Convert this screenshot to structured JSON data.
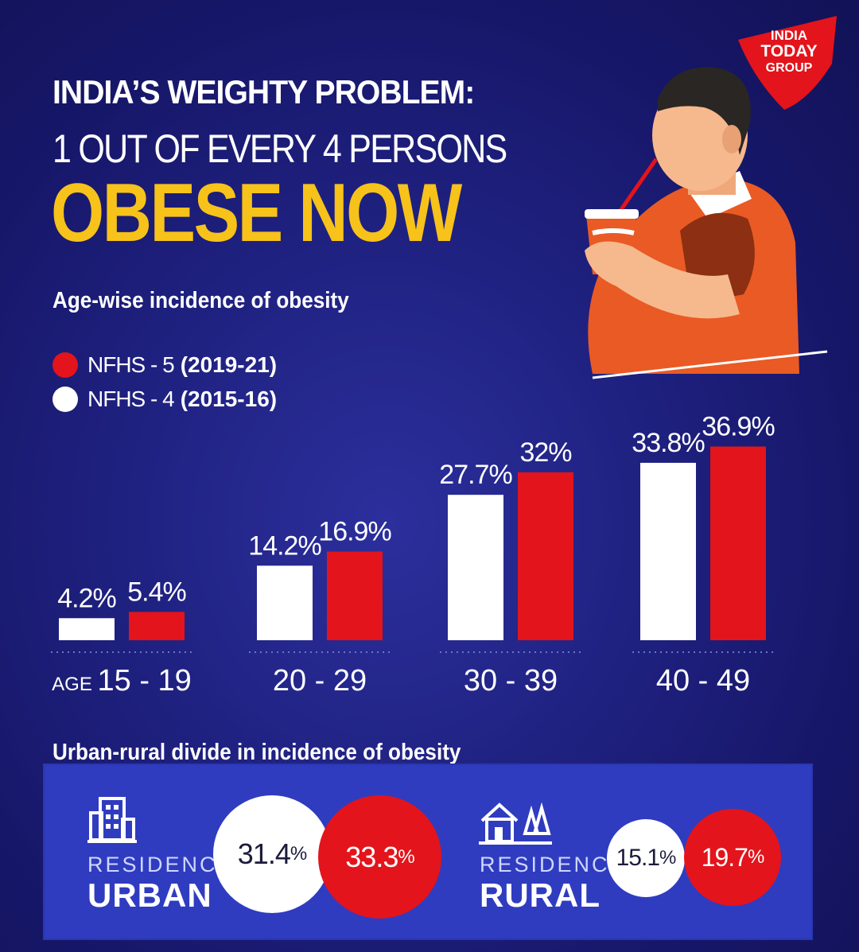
{
  "brand": {
    "logo_lines": [
      "INDIA",
      "TODAY",
      "GROUP"
    ],
    "color": "#e3141b"
  },
  "header": {
    "line1": "INDIA’S WEIGHTY PROBLEM:",
    "line2": "1 OUT OF EVERY 4 PERSONS",
    "line3": "OBESE NOW"
  },
  "colors": {
    "background": "#1f2180",
    "accent_yellow": "#f7c21a",
    "nfhs5": "#e3141b",
    "nfhs4": "#ffffff",
    "panel": "#2f3cc0"
  },
  "age_section": {
    "title": "Age-wise incidence of obesity",
    "legend": [
      {
        "name": "NFHS - 5",
        "years": "(2019-21)",
        "color": "#e3141b"
      },
      {
        "name": "NFHS - 4",
        "years": "(2015-16)",
        "color": "#ffffff"
      }
    ]
  },
  "chart_data": {
    "type": "bar",
    "title": "Age-wise incidence of obesity",
    "categories": [
      "15 - 19",
      "20 - 29",
      "30 - 39",
      "40 - 49"
    ],
    "category_prefix": "AGE",
    "series": [
      {
        "name": "NFHS - 4 (2015-16)",
        "color": "#ffffff",
        "values": [
          4.2,
          14.2,
          27.7,
          33.8
        ],
        "labels": [
          "4.2%",
          "14.2%",
          "27.7%",
          "33.8%"
        ]
      },
      {
        "name": "NFHS - 5 (2019-21)",
        "color": "#e3141b",
        "values": [
          5.4,
          16.9,
          32,
          36.9
        ],
        "labels": [
          "5.4%",
          "16.9%",
          "32%",
          "36.9%"
        ]
      }
    ],
    "ylim": [
      0,
      40
    ],
    "legend_position": "top-left"
  },
  "urban_section": {
    "title": "Urban-rural divide in incidence of obesity",
    "urban": {
      "label_small": "RESIDENCE",
      "label_big": "URBAN",
      "icon": "building-icon",
      "nfhs4": "31.4",
      "nfhs5": "33.3",
      "unit": "%"
    },
    "rural": {
      "label_small": "RESIDENCE",
      "label_big": "RURAL",
      "icon": "house-trees-icon",
      "nfhs4": "15.1",
      "nfhs5": "19.7",
      "unit": "%"
    }
  },
  "illustration": {
    "icon": "man-drinking-soda-illustration"
  }
}
